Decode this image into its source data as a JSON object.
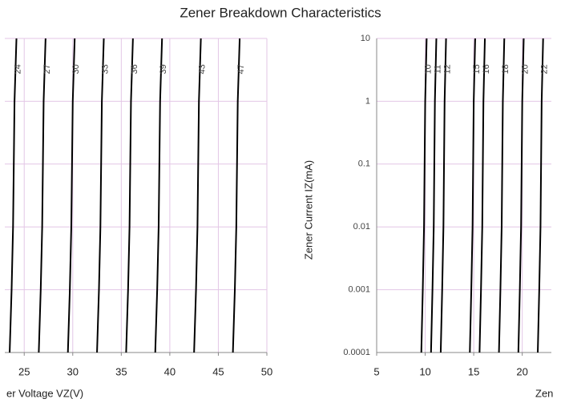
{
  "chart_data": [
    {
      "type": "line",
      "title": "Zener Breakdown Characteristics",
      "xlabel": "er Voltage   VZ(V)",
      "xlim": [
        23,
        50
      ],
      "xticks": [
        25,
        30,
        35,
        40,
        45,
        50
      ],
      "ylim": [
        0.0001,
        10
      ],
      "log_y": true,
      "grid": true,
      "series": [
        {
          "name": "24",
          "color": "#000000",
          "x": [
            23.5,
            23.7,
            23.85,
            24,
            24.2
          ],
          "values": [
            0.0001,
            0.001,
            0.01,
            1,
            10
          ]
        },
        {
          "name": "27",
          "color": "#000000",
          "x": [
            26.5,
            26.7,
            26.85,
            27,
            27.2
          ],
          "values": [
            0.0001,
            0.001,
            0.01,
            1,
            10
          ]
        },
        {
          "name": "30",
          "color": "#000000",
          "x": [
            29.5,
            29.7,
            29.85,
            30,
            30.2
          ],
          "values": [
            0.0001,
            0.001,
            0.01,
            1,
            10
          ]
        },
        {
          "name": "33",
          "color": "#000000",
          "x": [
            32.5,
            32.7,
            32.85,
            33,
            33.2
          ],
          "values": [
            0.0001,
            0.001,
            0.01,
            1,
            10
          ]
        },
        {
          "name": "36",
          "color": "#000000",
          "x": [
            35.5,
            35.7,
            35.85,
            36,
            36.2
          ],
          "values": [
            0.0001,
            0.001,
            0.01,
            1,
            10
          ]
        },
        {
          "name": "39",
          "color": "#000000",
          "x": [
            38.5,
            38.7,
            38.85,
            39,
            39.2
          ],
          "values": [
            0.0001,
            0.001,
            0.01,
            1,
            10
          ]
        },
        {
          "name": "43",
          "color": "#000000",
          "x": [
            42.5,
            42.7,
            42.85,
            43,
            43.2
          ],
          "values": [
            0.0001,
            0.001,
            0.01,
            1,
            10
          ]
        },
        {
          "name": "47",
          "color": "#000000",
          "x": [
            46.5,
            46.7,
            46.85,
            47,
            47.2
          ],
          "values": [
            0.0001,
            0.001,
            0.01,
            1,
            10
          ]
        }
      ]
    },
    {
      "type": "line",
      "xlabel": "Zen",
      "ylabel": "Zener Current  IZ(mA)",
      "xlim": [
        5,
        23
      ],
      "xticks": [
        5,
        10,
        15,
        20
      ],
      "ylim": [
        0.0001,
        10
      ],
      "yticks": [
        0.0001,
        0.001,
        0.01,
        0.1,
        1,
        10
      ],
      "log_y": true,
      "grid": true,
      "series": [
        {
          "name": "10",
          "color": "#000000",
          "x": [
            9.6,
            9.75,
            9.88,
            10,
            10.15
          ],
          "values": [
            0.0001,
            0.001,
            0.01,
            1,
            10
          ]
        },
        {
          "name": "11",
          "color": "#000000",
          "x": [
            10.6,
            10.75,
            10.88,
            11,
            11.15
          ],
          "values": [
            0.0001,
            0.001,
            0.01,
            1,
            10
          ]
        },
        {
          "name": "12",
          "color": "#000000",
          "x": [
            11.6,
            11.75,
            11.88,
            12,
            12.15
          ],
          "values": [
            0.0001,
            0.001,
            0.01,
            1,
            10
          ]
        },
        {
          "name": "15",
          "color": "#000000",
          "x": [
            14.6,
            14.75,
            14.88,
            15,
            15.15
          ],
          "values": [
            0.0001,
            0.001,
            0.01,
            1,
            10
          ]
        },
        {
          "name": "16",
          "color": "#000000",
          "x": [
            15.6,
            15.75,
            15.88,
            16,
            16.15
          ],
          "values": [
            0.0001,
            0.001,
            0.01,
            1,
            10
          ]
        },
        {
          "name": "18",
          "color": "#000000",
          "x": [
            17.6,
            17.75,
            17.88,
            18,
            18.15
          ],
          "values": [
            0.0001,
            0.001,
            0.01,
            1,
            10
          ]
        },
        {
          "name": "20",
          "color": "#000000",
          "x": [
            19.6,
            19.75,
            19.88,
            20,
            20.15
          ],
          "values": [
            0.0001,
            0.001,
            0.01,
            1,
            10
          ]
        },
        {
          "name": "22",
          "color": "#000000",
          "x": [
            21.6,
            21.75,
            21.88,
            22,
            22.15
          ],
          "values": [
            0.0001,
            0.001,
            0.01,
            1,
            10
          ]
        }
      ]
    }
  ]
}
